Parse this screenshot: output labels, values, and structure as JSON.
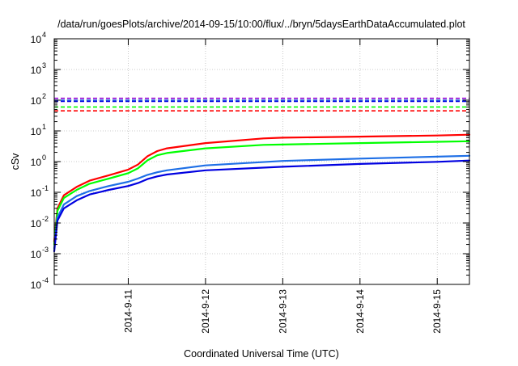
{
  "chart_data": {
    "type": "line",
    "title": "/data/run/goesPlots/archive/2014-09-15/10:00/flux/../bryn/5daysEarthDataAccumulated.plot",
    "xlabel": "Coordinated Universal Time (UTC)",
    "ylabel": "cSv",
    "x_scale": "time",
    "y_scale": "log",
    "xlim": [
      "2014-09-10T01:00",
      "2014-09-15T10:00"
    ],
    "ylim": [
      0.0001,
      10000
    ],
    "x_ticks": [
      "2014-9-11",
      "2014-9-12",
      "2014-9-13",
      "2014-9-14",
      "2014-9-15"
    ],
    "x_tick_dates": [
      "2014-09-11T00:00",
      "2014-09-12T00:00",
      "2014-09-13T00:00",
      "2014-09-14T00:00",
      "2014-09-15T00:00"
    ],
    "y_ticks": [
      {
        "value": 0.0001,
        "base": "10",
        "exp": "-4"
      },
      {
        "value": 0.001,
        "base": "10",
        "exp": "-3"
      },
      {
        "value": 0.01,
        "base": "10",
        "exp": "-2"
      },
      {
        "value": 0.1,
        "base": "10",
        "exp": "-1"
      },
      {
        "value": 1,
        "base": "10",
        "exp": "0"
      },
      {
        "value": 10,
        "base": "10",
        "exp": "1"
      },
      {
        "value": 100,
        "base": "10",
        "exp": "2"
      },
      {
        "value": 1000,
        "base": "10",
        "exp": "3"
      },
      {
        "value": 10000,
        "base": "10",
        "exp": "4"
      }
    ],
    "grid": true,
    "legend": "none",
    "series": [
      {
        "color": "#ff0000",
        "style": "solid",
        "points": [
          [
            "2014-09-10T01:00",
            0.0025
          ],
          [
            "2014-09-10T02:00",
            0.03
          ],
          [
            "2014-09-10T04:00",
            0.08
          ],
          [
            "2014-09-10T08:00",
            0.15
          ],
          [
            "2014-09-10T12:00",
            0.24
          ],
          [
            "2014-09-10T18:00",
            0.36
          ],
          [
            "2014-09-11T00:00",
            0.55
          ],
          [
            "2014-09-11T03:00",
            0.8
          ],
          [
            "2014-09-11T06:00",
            1.5
          ],
          [
            "2014-09-11T09:00",
            2.2
          ],
          [
            "2014-09-11T12:00",
            2.7
          ],
          [
            "2014-09-12T00:00",
            4.0
          ],
          [
            "2014-09-12T18:00",
            5.7
          ],
          [
            "2014-09-13T00:00",
            6.0
          ],
          [
            "2014-09-14T00:00",
            6.5
          ],
          [
            "2014-09-15T00:00",
            7.1
          ],
          [
            "2014-09-15T10:00",
            7.5
          ]
        ]
      },
      {
        "color": "#00ff00",
        "style": "solid",
        "points": [
          [
            "2014-09-10T01:00",
            0.002
          ],
          [
            "2014-09-10T02:00",
            0.025
          ],
          [
            "2014-09-10T04:00",
            0.065
          ],
          [
            "2014-09-10T08:00",
            0.12
          ],
          [
            "2014-09-10T12:00",
            0.19
          ],
          [
            "2014-09-10T18:00",
            0.28
          ],
          [
            "2014-09-11T00:00",
            0.42
          ],
          [
            "2014-09-11T03:00",
            0.6
          ],
          [
            "2014-09-11T06:00",
            1.1
          ],
          [
            "2014-09-11T09:00",
            1.6
          ],
          [
            "2014-09-11T12:00",
            1.9
          ],
          [
            "2014-09-12T00:00",
            2.7
          ],
          [
            "2014-09-12T18:00",
            3.5
          ],
          [
            "2014-09-13T00:00",
            3.6
          ],
          [
            "2014-09-14T00:00",
            4.0
          ],
          [
            "2014-09-15T00:00",
            4.4
          ],
          [
            "2014-09-15T10:00",
            4.6
          ]
        ]
      },
      {
        "color": "#1e6fe6",
        "style": "solid",
        "points": [
          [
            "2014-09-10T01:00",
            0.0015
          ],
          [
            "2014-09-10T02:00",
            0.015
          ],
          [
            "2014-09-10T04:00",
            0.04
          ],
          [
            "2014-09-10T08:00",
            0.075
          ],
          [
            "2014-09-10T12:00",
            0.11
          ],
          [
            "2014-09-10T18:00",
            0.16
          ],
          [
            "2014-09-11T00:00",
            0.22
          ],
          [
            "2014-09-11T03:00",
            0.28
          ],
          [
            "2014-09-11T06:00",
            0.37
          ],
          [
            "2014-09-11T09:00",
            0.45
          ],
          [
            "2014-09-11T12:00",
            0.52
          ],
          [
            "2014-09-12T00:00",
            0.75
          ],
          [
            "2014-09-13T00:00",
            1.05
          ],
          [
            "2014-09-14T00:00",
            1.25
          ],
          [
            "2014-09-15T00:00",
            1.45
          ],
          [
            "2014-09-15T10:00",
            1.55
          ]
        ]
      },
      {
        "color": "#0000e0",
        "style": "solid",
        "points": [
          [
            "2014-09-10T01:00",
            0.0012
          ],
          [
            "2014-09-10T02:00",
            0.012
          ],
          [
            "2014-09-10T04:00",
            0.03
          ],
          [
            "2014-09-10T08:00",
            0.055
          ],
          [
            "2014-09-10T12:00",
            0.085
          ],
          [
            "2014-09-10T18:00",
            0.12
          ],
          [
            "2014-09-11T00:00",
            0.16
          ],
          [
            "2014-09-11T03:00",
            0.2
          ],
          [
            "2014-09-11T06:00",
            0.27
          ],
          [
            "2014-09-11T09:00",
            0.33
          ],
          [
            "2014-09-11T12:00",
            0.38
          ],
          [
            "2014-09-12T00:00",
            0.52
          ],
          [
            "2014-09-13T00:00",
            0.68
          ],
          [
            "2014-09-14T00:00",
            0.84
          ],
          [
            "2014-09-15T00:00",
            0.98
          ],
          [
            "2014-09-15T10:00",
            1.08
          ]
        ]
      },
      {
        "color": "#9400d3",
        "style": "dashed",
        "points": [
          [
            "2014-09-10T01:00",
            115
          ],
          [
            "2014-09-15T10:00",
            115
          ]
        ]
      },
      {
        "color": "#1e6fe6",
        "style": "dashed",
        "points": [
          [
            "2014-09-10T01:00",
            100
          ],
          [
            "2014-09-15T10:00",
            100
          ]
        ]
      },
      {
        "color": "#0000e0",
        "style": "dashed",
        "points": [
          [
            "2014-09-10T01:00",
            92
          ],
          [
            "2014-09-15T10:00",
            92
          ]
        ]
      },
      {
        "color": "#00ff00",
        "style": "dashed",
        "points": [
          [
            "2014-09-10T01:00",
            60
          ],
          [
            "2014-09-15T10:00",
            60
          ]
        ]
      },
      {
        "color": "#ff0000",
        "style": "dashed",
        "points": [
          [
            "2014-09-10T01:00",
            45
          ],
          [
            "2014-09-15T10:00",
            45
          ]
        ]
      }
    ]
  }
}
